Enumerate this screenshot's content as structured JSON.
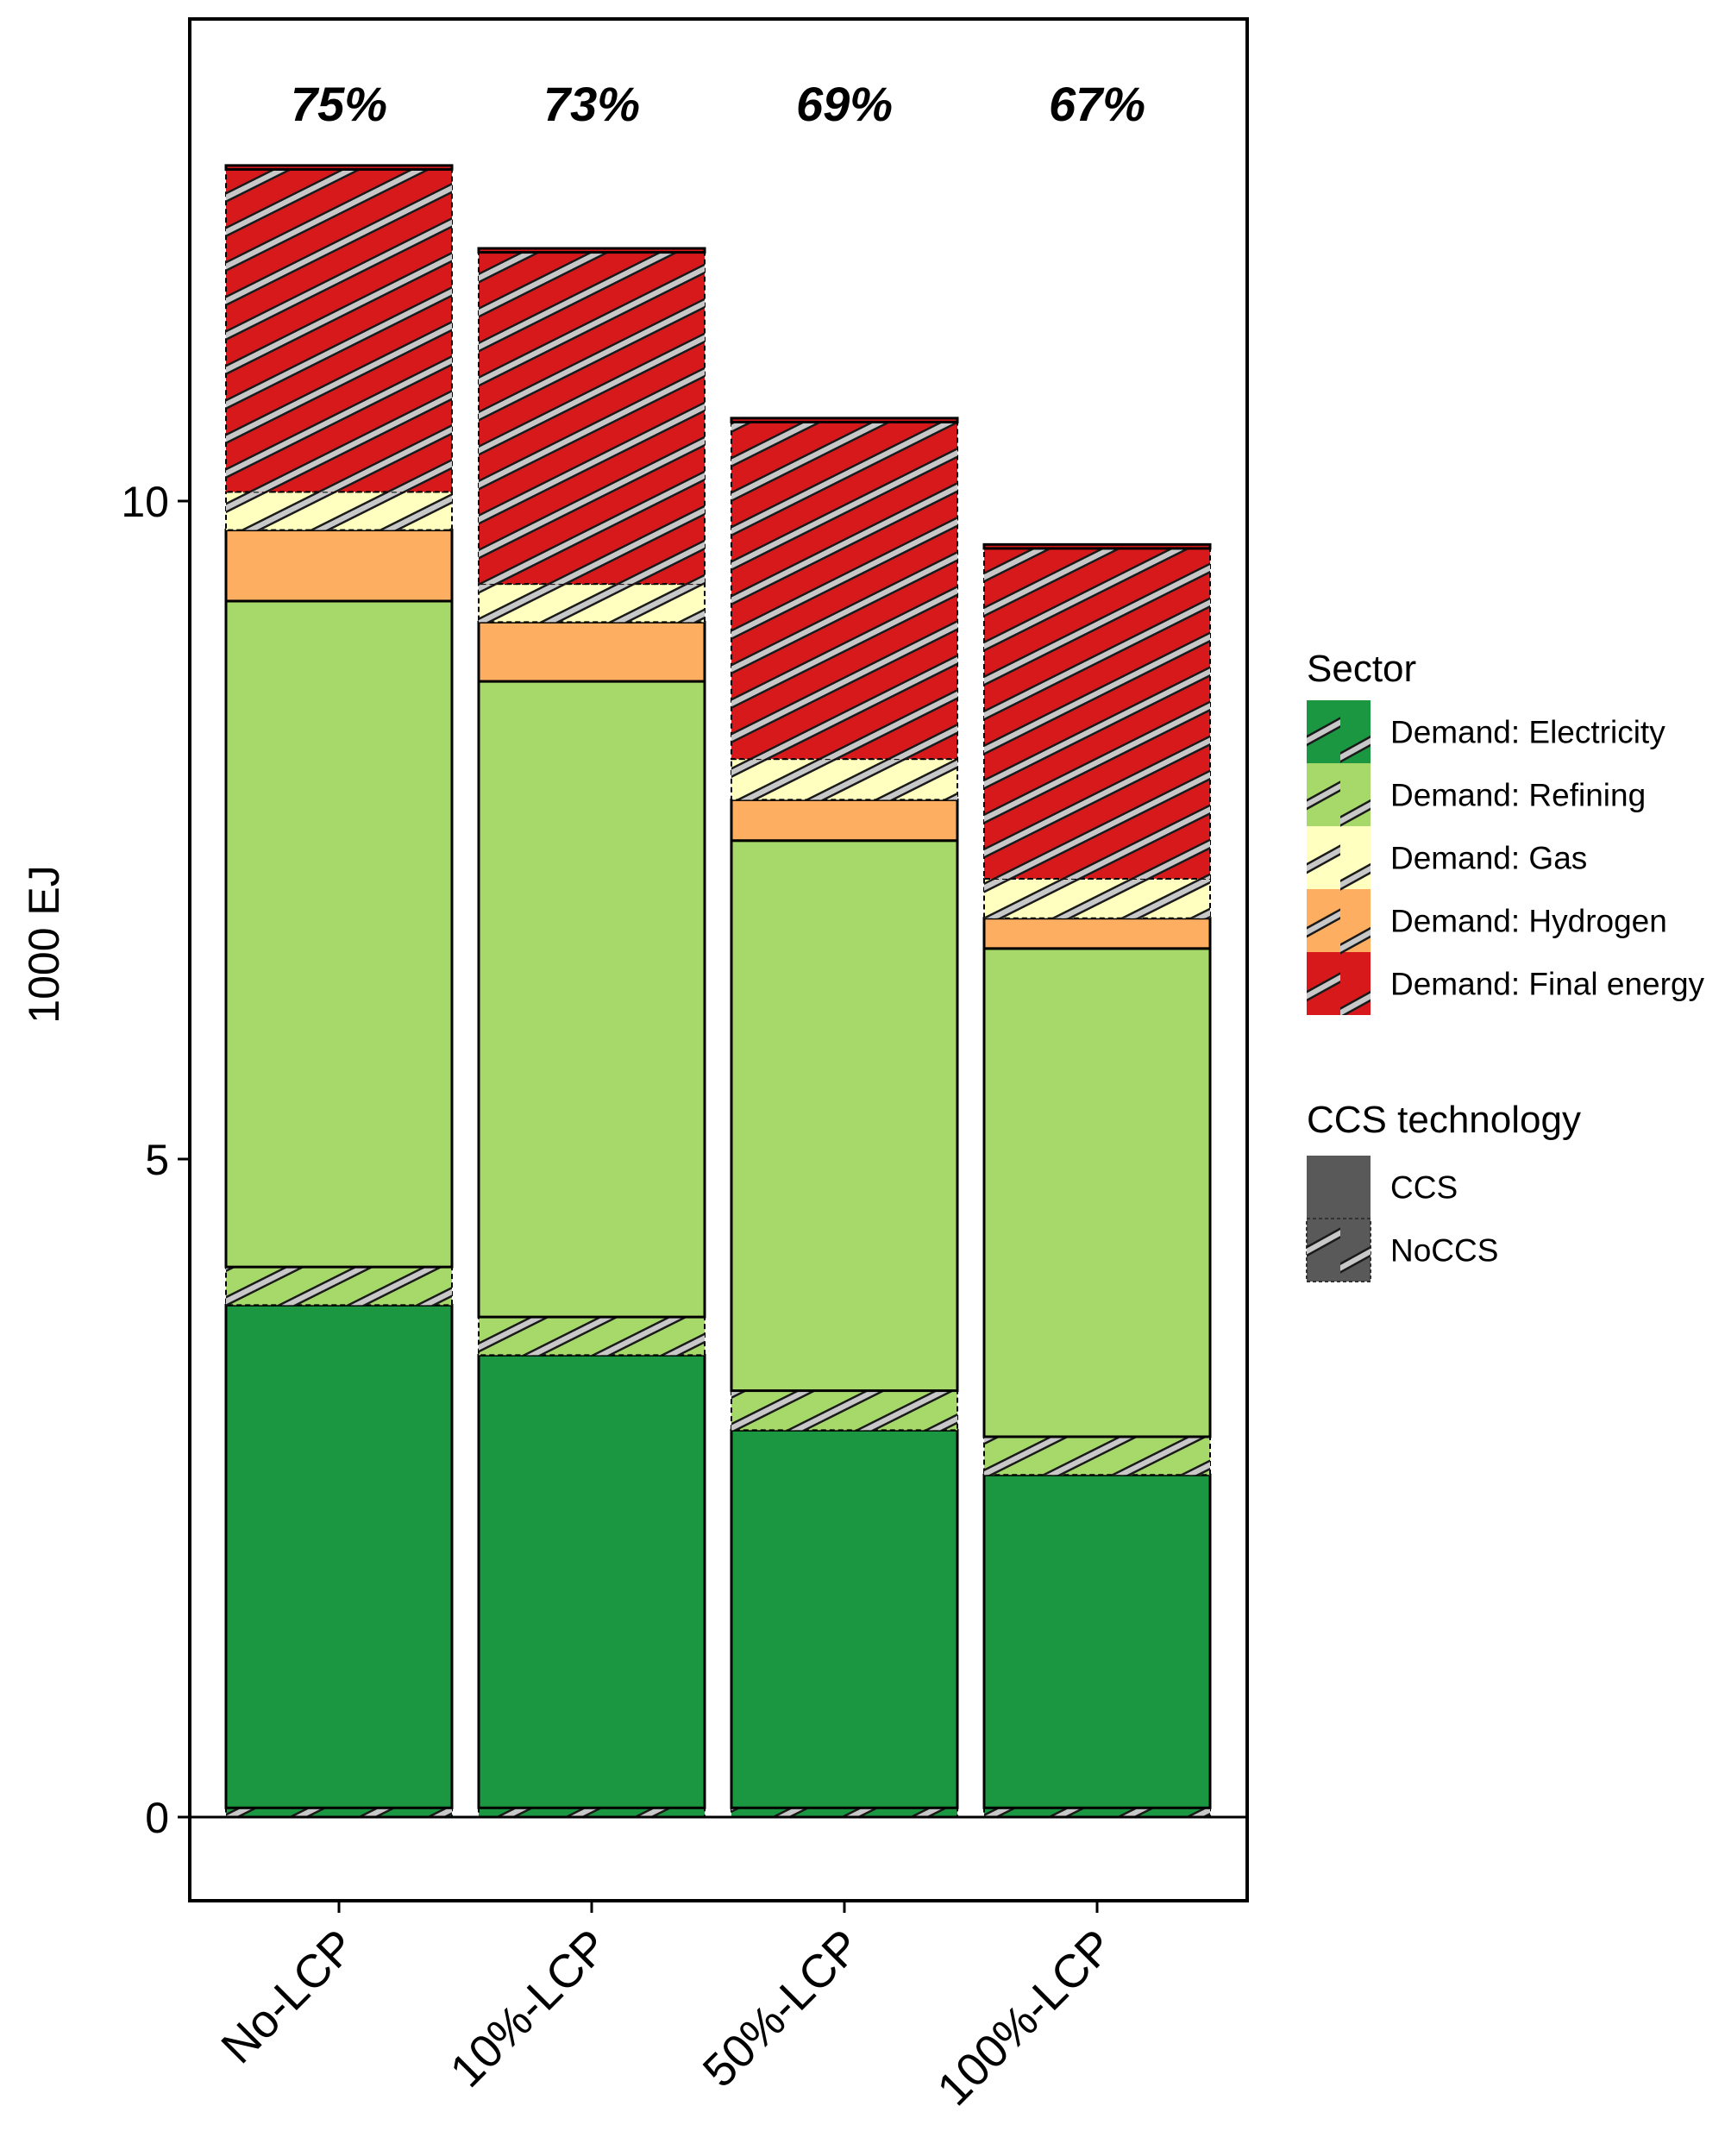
{
  "chart_data": {
    "type": "bar",
    "stacked": true,
    "ylabel": "1000 EJ",
    "ylim": [
      -0.65,
      13.7
    ],
    "yticks": [
      0,
      5,
      10
    ],
    "categories": [
      "No-LCP",
      "10%-LCP",
      "50%-LCP",
      "100%-LCP"
    ],
    "top_annotations": [
      "75%",
      "73%",
      "69%",
      "67%"
    ],
    "series": [
      {
        "name": "Demand: Electricity",
        "ccs": "NoCCS",
        "values": [
          0.07,
          0.07,
          0.07,
          0.07
        ]
      },
      {
        "name": "Demand: Electricity",
        "ccs": "CCS",
        "values": [
          3.82,
          3.44,
          2.87,
          2.53
        ]
      },
      {
        "name": "Demand: Refining",
        "ccs": "NoCCS",
        "values": [
          0.29,
          0.29,
          0.3,
          0.29
        ]
      },
      {
        "name": "Demand: Refining",
        "ccs": "CCS",
        "values": [
          5.06,
          4.83,
          4.18,
          3.71
        ]
      },
      {
        "name": "Demand: Hydrogen",
        "ccs": "CCS",
        "values": [
          0.54,
          0.45,
          0.31,
          0.23
        ]
      },
      {
        "name": "Demand: Gas",
        "ccs": "NoCCS",
        "values": [
          0.29,
          0.29,
          0.31,
          0.3
        ]
      },
      {
        "name": "Demand: Final energy",
        "ccs": "NoCCS",
        "values": [
          2.45,
          2.52,
          2.56,
          2.51
        ]
      },
      {
        "name": "Demand: Final energy",
        "ccs": "CCS",
        "values": [
          0.03,
          0.03,
          0.03,
          0.03
        ]
      }
    ],
    "legend": {
      "position": "right",
      "sector_title": "Sector",
      "sector_items": [
        {
          "label": "Demand: Electricity",
          "color": "#1b9641"
        },
        {
          "label": "Demand: Refining",
          "color": "#a6d96a"
        },
        {
          "label": "Demand: Gas",
          "color": "#ffffbf"
        },
        {
          "label": "Demand: Hydrogen",
          "color": "#fdae61"
        },
        {
          "label": "Demand: Final energy",
          "color": "#d7191c"
        }
      ],
      "ccs_title": "CCS technology",
      "ccs_items": [
        {
          "label": "CCS",
          "hatched": false
        },
        {
          "label": "NoCCS",
          "hatched": true
        }
      ]
    },
    "colors": {
      "Demand: Electricity": "#1b9641",
      "Demand: Refining": "#a6d96a",
      "Demand: Gas": "#ffffbf",
      "Demand: Hydrogen": "#fdae61",
      "Demand: Final energy": "#d7191c",
      "ccs_swatch": "#595959"
    }
  }
}
